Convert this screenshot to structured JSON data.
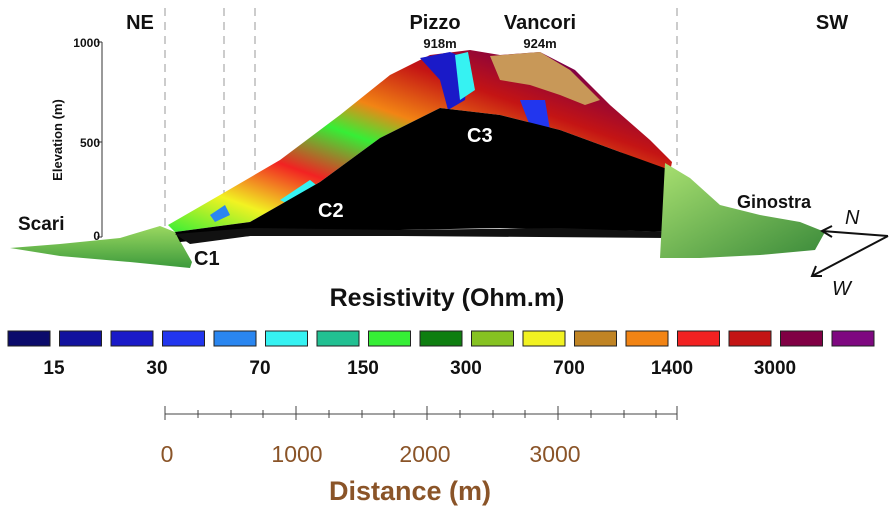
{
  "labels": {
    "ne": "NE",
    "sw": "SW",
    "pizzo": "Pizzo",
    "pizzo_elevation": "918m",
    "vancori": "Vancori",
    "vancori_elevation": "924m",
    "scari": "Scari",
    "ginostra": "Ginostra",
    "c1": "C1",
    "c2": "C2",
    "c3": "C3",
    "north": "N",
    "west": "W"
  },
  "elevation_axis": {
    "title": "Elevation (m)",
    "ticks": [
      "1000",
      "500",
      "0"
    ]
  },
  "legend": {
    "title": "Resistivity (Ohm.m)",
    "colors": [
      "#0b0b6b",
      "#12129e",
      "#1a1ac8",
      "#2236ee",
      "#2a86f0",
      "#36f2f2",
      "#22c092",
      "#36ee36",
      "#0e7e10",
      "#86c222",
      "#f2f222",
      "#c08424",
      "#f28414",
      "#f22222",
      "#c41414",
      "#800044",
      "#7e0880"
    ],
    "labels": [
      "15",
      "30",
      "70",
      "150",
      "300",
      "700",
      "1400",
      "3000"
    ]
  },
  "distance_axis": {
    "title": "Distance (m)",
    "ticks": [
      "0",
      "1000",
      "2000",
      "3000"
    ]
  }
}
